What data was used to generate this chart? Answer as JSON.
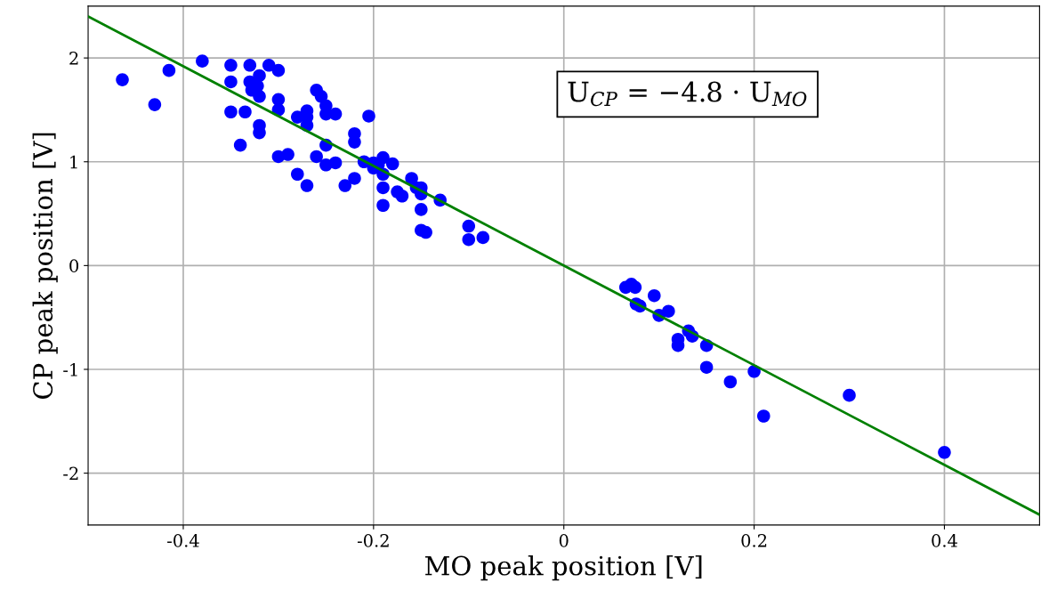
{
  "chart_data": {
    "type": "scatter",
    "xlabel": "MO peak position [V]",
    "ylabel": "CP peak position [V]",
    "xlim": [
      -0.5,
      0.5
    ],
    "ylim": [
      -2.5,
      2.5
    ],
    "xticks": [
      -0.4,
      -0.2,
      0,
      0.2,
      0.4
    ],
    "yticks": [
      -2,
      -1,
      0,
      1,
      2
    ],
    "grid": true,
    "annotations": [
      "U$_{CP}$ = −4.8 · U$_{MO}$"
    ],
    "series": [
      {
        "color": "#0000ff",
        "marker": "circle",
        "x": [
          -0.464,
          -0.43,
          -0.415,
          -0.38,
          -0.35,
          -0.35,
          -0.35,
          -0.34,
          -0.335,
          -0.33,
          -0.33,
          -0.328,
          -0.322,
          -0.32,
          -0.32,
          -0.32,
          -0.32,
          -0.31,
          -0.3,
          -0.3,
          -0.3,
          -0.3,
          -0.29,
          -0.28,
          -0.28,
          -0.27,
          -0.27,
          -0.27,
          -0.27,
          -0.26,
          -0.26,
          -0.255,
          -0.25,
          -0.25,
          -0.25,
          -0.25,
          -0.24,
          -0.24,
          -0.23,
          -0.22,
          -0.22,
          -0.22,
          -0.21,
          -0.205,
          -0.2,
          -0.2,
          -0.195,
          -0.19,
          -0.19,
          -0.19,
          -0.19,
          -0.18,
          -0.175,
          -0.17,
          -0.16,
          -0.155,
          -0.15,
          -0.15,
          -0.15,
          -0.15,
          -0.145,
          -0.13,
          -0.1,
          -0.1,
          -0.085,
          0.065,
          0.071,
          0.075,
          0.076,
          0.08,
          0.095,
          0.1,
          0.11,
          0.131,
          0.135,
          0.12,
          0.12,
          0.15,
          0.15,
          0.175,
          0.2,
          0.21,
          0.3,
          0.4
        ],
        "values": [
          1.79,
          1.55,
          1.88,
          1.97,
          1.93,
          1.77,
          1.48,
          1.16,
          1.48,
          1.93,
          1.77,
          1.69,
          1.73,
          1.83,
          1.63,
          1.35,
          1.28,
          1.93,
          1.88,
          1.6,
          1.5,
          1.05,
          1.07,
          0.88,
          1.43,
          1.43,
          1.49,
          1.35,
          0.77,
          1.69,
          1.05,
          1.63,
          1.54,
          1.46,
          1.16,
          0.97,
          1.46,
          0.99,
          0.77,
          1.27,
          1.19,
          0.84,
          1.0,
          1.44,
          0.94,
          0.99,
          0.97,
          1.04,
          0.88,
          0.75,
          0.58,
          0.98,
          0.71,
          0.67,
          0.84,
          0.75,
          0.69,
          0.75,
          0.54,
          0.34,
          0.32,
          0.63,
          0.38,
          0.25,
          0.27,
          -0.21,
          -0.18,
          -0.21,
          -0.37,
          -0.39,
          -0.29,
          -0.48,
          -0.44,
          -0.63,
          -0.68,
          -0.71,
          -0.77,
          -0.77,
          -0.98,
          -1.12,
          -1.02,
          -1.45,
          -1.25,
          -1.8
        ]
      },
      {
        "type": "line",
        "color": "#008000",
        "line_style": "solid",
        "x": [
          -0.5,
          0.5
        ],
        "values": [
          2.4,
          -2.4
        ]
      }
    ]
  }
}
